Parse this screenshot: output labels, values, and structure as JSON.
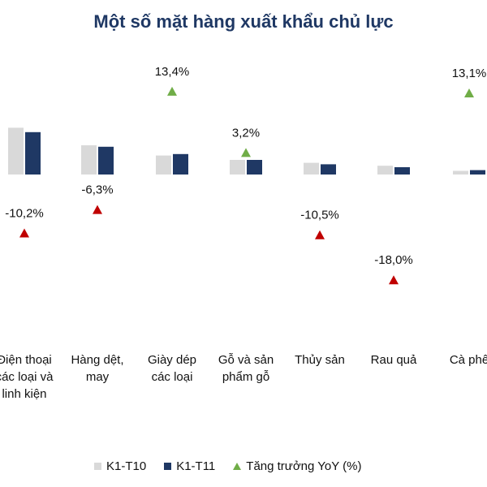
{
  "chart_data": {
    "type": "bar",
    "title": "Một số mặt hàng xuất khẩu chủ lực",
    "categories": [
      "Điện thoại các loại và linh kiện",
      "Hàng dệt, may",
      "Giày dép các loại",
      "Gỗ và sản phẩm gỗ",
      "Thủy sản",
      "Rau quả",
      "Cà phê"
    ],
    "category_lines": [
      [
        "Điện thoại",
        "các loại và",
        "linh kiện"
      ],
      [
        "Hàng dệt,",
        "may"
      ],
      [
        "Giày dép",
        "các loại"
      ],
      [
        "Gỗ và sản",
        "phẩm gỗ"
      ],
      [
        "Thủy sản"
      ],
      [
        "Rau quả"
      ],
      [
        "Cà phê"
      ]
    ],
    "series": [
      {
        "name": "K1-T10",
        "values": [
          3.2,
          2.0,
          1.3,
          1.0,
          0.8,
          0.6,
          0.25
        ],
        "color": "#d9d9d9"
      },
      {
        "name": "K1-T11",
        "values": [
          2.9,
          1.9,
          1.4,
          1.0,
          0.7,
          0.5,
          0.3
        ],
        "color": "#1f3864"
      }
    ],
    "growth": {
      "name": "Tăng trưởng YoY (%)",
      "values": [
        -10.2,
        -6.3,
        13.4,
        3.2,
        -10.5,
        -18.0,
        13.1
      ],
      "labels": [
        "-10,2%",
        "-6,3%",
        "13,4%",
        "3,2%",
        "-10,5%",
        "-18,0%",
        "13,1%"
      ],
      "positive_color": "#70ad47",
      "negative_color": "#c00000"
    },
    "legend": [
      "K1-T10",
      "K1-T11",
      "Tăng trưởng YoY (%)"
    ],
    "legend_position": "bottom",
    "grid": false
  }
}
